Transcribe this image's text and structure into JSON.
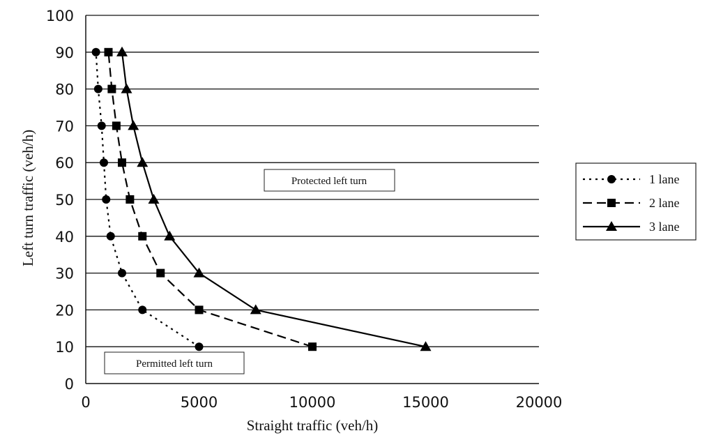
{
  "chart_data": {
    "type": "line",
    "xlabel": "Straight traffic (veh/h)",
    "ylabel": "Left turn traffic (veh/h)",
    "xlim": [
      0,
      20000
    ],
    "ylim": [
      0,
      100
    ],
    "xticks": [
      "0",
      "5000",
      "10000",
      "15000",
      "20000"
    ],
    "yticks": [
      "0",
      "10",
      "20",
      "30",
      "40",
      "50",
      "60",
      "70",
      "80",
      "90",
      "100"
    ],
    "grid": "horizontal",
    "legend_position": "right",
    "series": [
      {
        "name": "1 lane",
        "marker": "circle",
        "line_style": "dotted",
        "points": [
          [
            5000,
            10
          ],
          [
            2500,
            20
          ],
          [
            1600,
            30
          ],
          [
            1100,
            40
          ],
          [
            900,
            50
          ],
          [
            800,
            60
          ],
          [
            700,
            70
          ],
          [
            550,
            80
          ],
          [
            450,
            90
          ]
        ]
      },
      {
        "name": "2 lane",
        "marker": "square",
        "line_style": "dashed",
        "points": [
          [
            10000,
            10
          ],
          [
            5000,
            20
          ],
          [
            3300,
            30
          ],
          [
            2500,
            40
          ],
          [
            1950,
            50
          ],
          [
            1600,
            60
          ],
          [
            1350,
            70
          ],
          [
            1150,
            80
          ],
          [
            1000,
            90
          ]
        ]
      },
      {
        "name": "3 lane",
        "marker": "triangle",
        "line_style": "solid",
        "points": [
          [
            15000,
            10
          ],
          [
            7500,
            20
          ],
          [
            5000,
            30
          ],
          [
            3700,
            40
          ],
          [
            3000,
            50
          ],
          [
            2500,
            60
          ],
          [
            2100,
            70
          ],
          [
            1800,
            80
          ],
          [
            1600,
            90
          ]
        ]
      }
    ],
    "annotations": [
      {
        "text": "Protected left turn",
        "at": [
          11000,
          55
        ]
      },
      {
        "text": "Permitted left turn",
        "at": [
          3500,
          6
        ]
      }
    ]
  }
}
